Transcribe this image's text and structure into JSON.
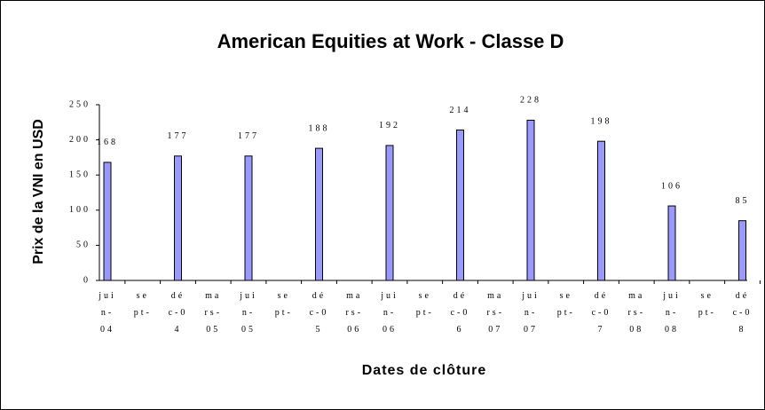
{
  "chart_data": {
    "type": "bar",
    "title": "American Equities at Work - Classe D",
    "x_label": "Dates de clôture",
    "y_label": "Prix de la VNI en USD",
    "categories": [
      "juin-04",
      "sept-",
      "déc-04",
      "mars-05",
      "juin-05",
      "sept-",
      "déc-05",
      "mars-06",
      "juin-06",
      "sept-",
      "déc-06",
      "mars-07",
      "juin-07",
      "sept-",
      "déc-07",
      "mars-08",
      "juin-08",
      "sept-",
      "déc-08"
    ],
    "values": [
      168,
      null,
      177,
      null,
      177,
      null,
      188,
      null,
      192,
      null,
      214,
      null,
      228,
      null,
      198,
      null,
      106,
      null,
      85
    ],
    "color": "#9999ff",
    "ylim": [
      0,
      250
    ],
    "yticks": [
      0,
      50,
      100,
      150,
      200,
      250
    ],
    "grid": false
  }
}
